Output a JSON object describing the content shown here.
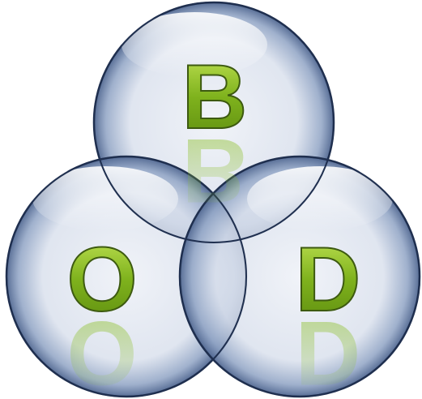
{
  "nodes": [
    {
      "label": "B"
    },
    {
      "label": "O"
    },
    {
      "label": "D"
    }
  ]
}
